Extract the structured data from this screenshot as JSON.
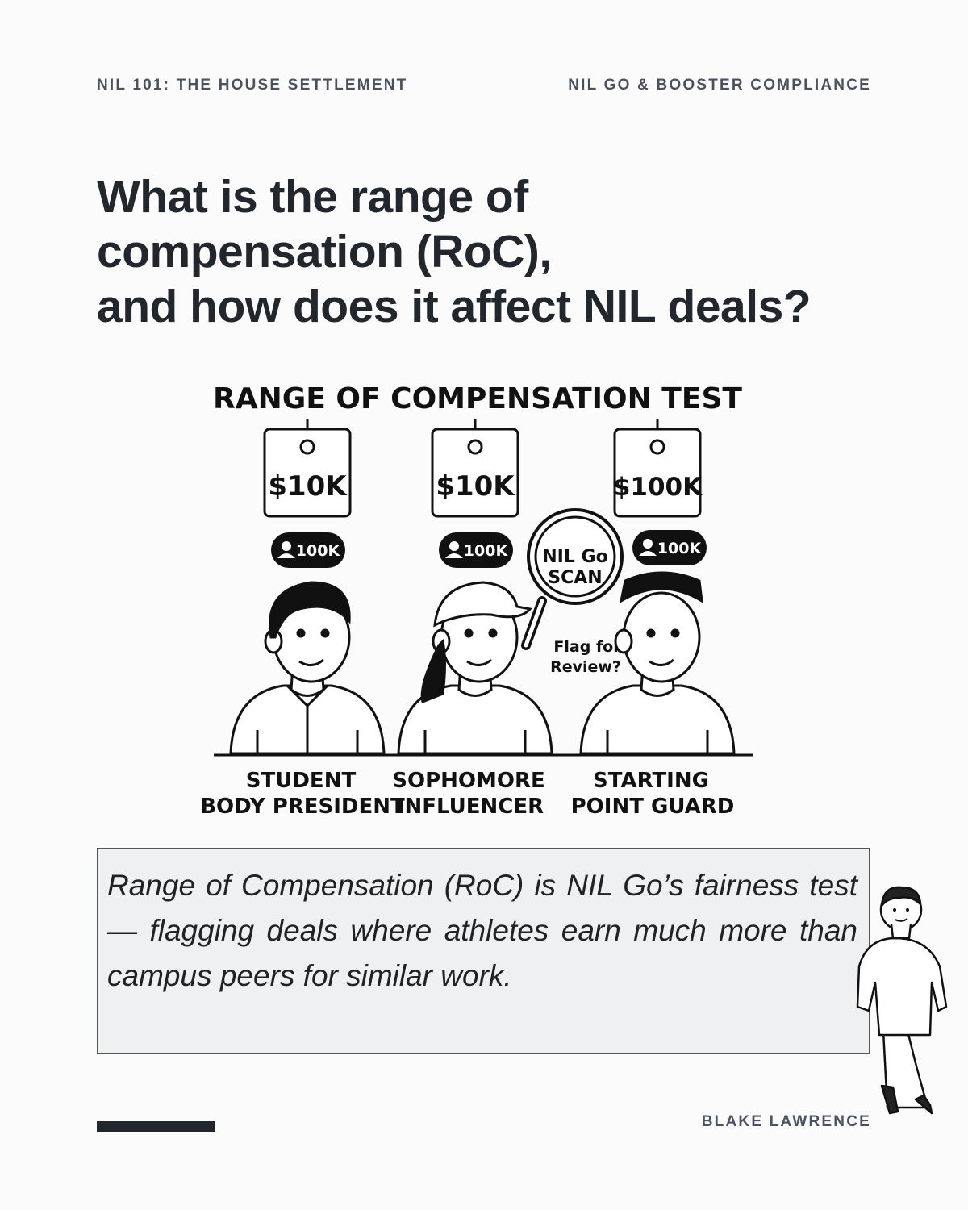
{
  "header": {
    "left": "NIL 101: THE HOUSE SETTLEMENT",
    "right": "NIL GO & BOOSTER COMPLIANCE"
  },
  "title": {
    "lines": [
      "What is the range of",
      "compensation (RoC),",
      "and how does it affect NIL deals?"
    ]
  },
  "illustration": {
    "title": "RANGE OF COMPENSATION TEST",
    "people": [
      {
        "price": "$10K",
        "followers": "100K",
        "label": [
          "STUDENT",
          "BODY PRESIDENT"
        ]
      },
      {
        "price": "$10K",
        "followers": "100K",
        "label": [
          "SOPHOMORE",
          "INFLUENCER"
        ]
      },
      {
        "price": "$100K",
        "followers": "100K",
        "label": [
          "STARTING",
          "POINT GUARD"
        ]
      }
    ],
    "scan": [
      "NIL Go",
      "SCAN"
    ],
    "flag": [
      "Flag for",
      "Review?"
    ]
  },
  "callout": {
    "text": "Range of Compensation (RoC) is NIL Go’s fairness test — flagging deals where athletes earn much more than campus peers for similar work."
  },
  "footer": {
    "author": "BLAKE LAWRENCE"
  }
}
